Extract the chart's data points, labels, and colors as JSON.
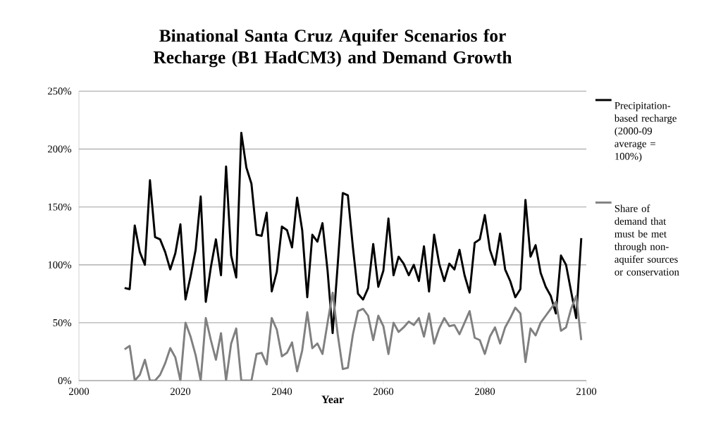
{
  "chart_data": {
    "type": "line",
    "title": "Binational Santa Cruz Aquifer Scenarios for Recharge (B1 HadCM3) and Demand Growth",
    "xlabel": "Year",
    "x": [
      2009,
      2010,
      2011,
      2012,
      2013,
      2014,
      2015,
      2016,
      2017,
      2018,
      2019,
      2020,
      2021,
      2022,
      2023,
      2024,
      2025,
      2026,
      2027,
      2028,
      2029,
      2030,
      2031,
      2032,
      2033,
      2034,
      2035,
      2036,
      2037,
      2038,
      2039,
      2040,
      2041,
      2042,
      2043,
      2044,
      2045,
      2046,
      2047,
      2048,
      2049,
      2050,
      2051,
      2052,
      2053,
      2054,
      2055,
      2056,
      2057,
      2058,
      2059,
      2060,
      2061,
      2062,
      2063,
      2064,
      2065,
      2066,
      2067,
      2068,
      2069,
      2070,
      2071,
      2072,
      2073,
      2074,
      2075,
      2076,
      2077,
      2078,
      2079,
      2080,
      2081,
      2082,
      2083,
      2084,
      2085,
      2086,
      2087,
      2088,
      2089,
      2090,
      2091,
      2092,
      2093,
      2094,
      2095,
      2096,
      2097,
      2098,
      2099
    ],
    "series": [
      {
        "name": "Precipitation-based recharge (2000-09 average = 100%)",
        "color": "#000000",
        "values": [
          80,
          79,
          134,
          111,
          100,
          173,
          124,
          122,
          111,
          96,
          110,
          135,
          70,
          90,
          113,
          159,
          68,
          98,
          122,
          91,
          185,
          108,
          89,
          214,
          184,
          170,
          126,
          125,
          145,
          77,
          94,
          133,
          130,
          115,
          158,
          130,
          72,
          126,
          120,
          136,
          95,
          41,
          100,
          162,
          160,
          115,
          75,
          70,
          80,
          118,
          81,
          95,
          140,
          91,
          107,
          101,
          91,
          100,
          86,
          116,
          77,
          126,
          101,
          86,
          101,
          96,
          113,
          91,
          76,
          119,
          122,
          143,
          113,
          100,
          127,
          96,
          86,
          72,
          79,
          156,
          107,
          117,
          93,
          81,
          73,
          58,
          108,
          100,
          77,
          54,
          123
        ]
      },
      {
        "name": "Share of demand that must be met through non-aquifer sources or conservation",
        "color": "#808080",
        "values": [
          27,
          30,
          0,
          5,
          18,
          0,
          0,
          5,
          15,
          28,
          20,
          0,
          50,
          38,
          22,
          0,
          54,
          35,
          18,
          41,
          0,
          32,
          45,
          0,
          0,
          0,
          23,
          24,
          14,
          54,
          44,
          21,
          24,
          33,
          8,
          26,
          59,
          28,
          32,
          23,
          50,
          76,
          40,
          10,
          11,
          40,
          60,
          62,
          56,
          35,
          56,
          47,
          23,
          50,
          42,
          46,
          51,
          48,
          54,
          38,
          58,
          32,
          45,
          54,
          47,
          48,
          40,
          50,
          60,
          37,
          35,
          23,
          38,
          46,
          32,
          46,
          54,
          63,
          58,
          16,
          45,
          39,
          50,
          56,
          62,
          68,
          43,
          46,
          62,
          73,
          35
        ]
      }
    ],
    "xlim": [
      2000,
      2100
    ],
    "xticks": [
      2000,
      2020,
      2040,
      2060,
      2080,
      2100
    ],
    "ylim": [
      0,
      250
    ],
    "yticks": [
      {
        "value": 0,
        "label": "0%"
      },
      {
        "value": 50,
        "label": "50%"
      },
      {
        "value": 100,
        "label": "100%"
      },
      {
        "value": 150,
        "label": "150%"
      },
      {
        "value": 200,
        "label": "200%"
      },
      {
        "value": 250,
        "label": "250%"
      }
    ],
    "grid": "y",
    "legend": "right",
    "marker": "none",
    "line_style": "solid"
  }
}
